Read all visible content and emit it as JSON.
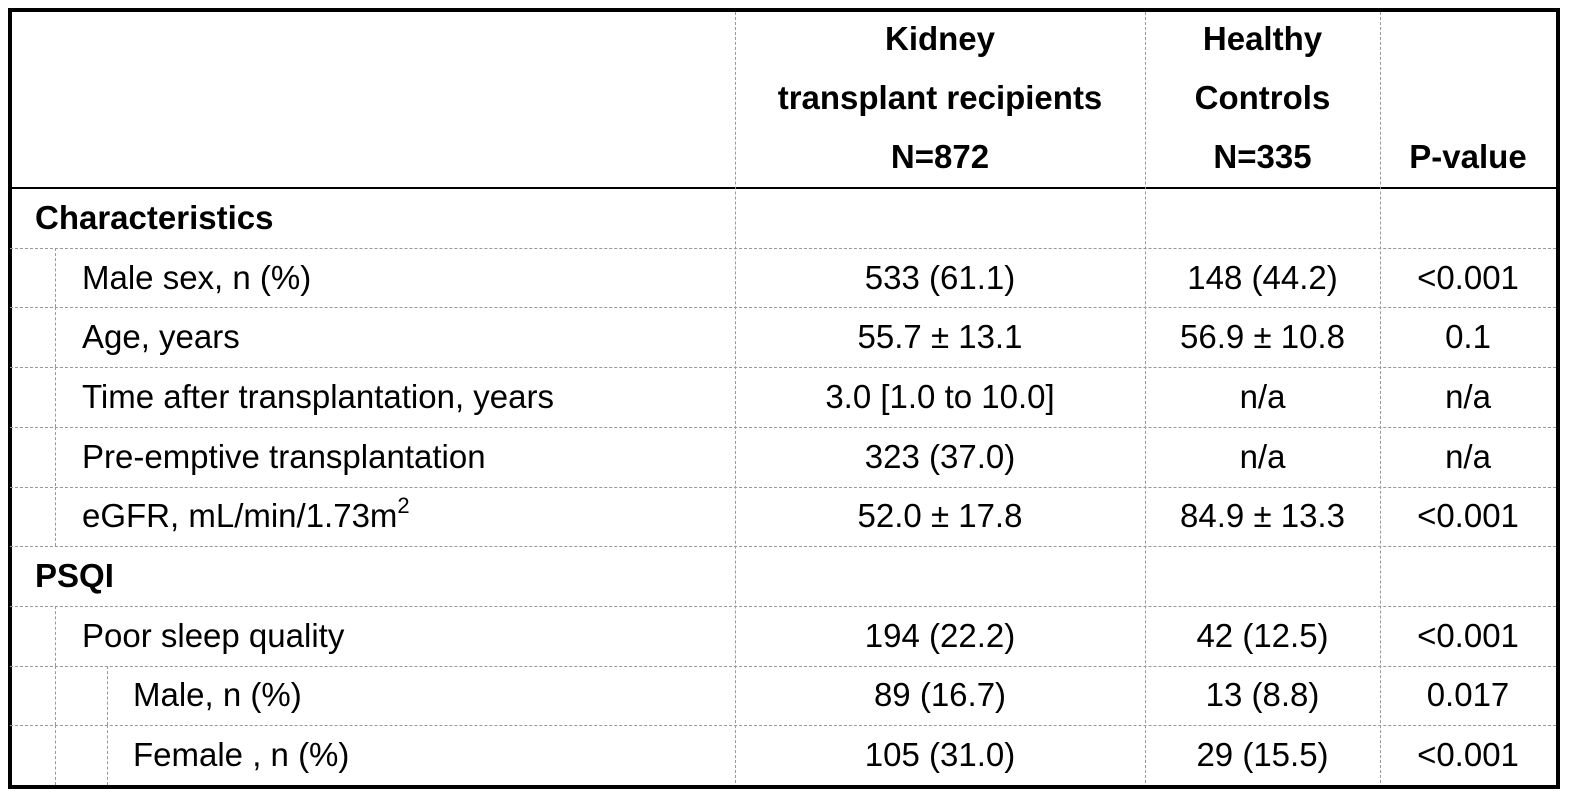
{
  "header": {
    "columns": [
      [
        "Kidney",
        "transplant recipients",
        "N=872"
      ],
      [
        "Healthy",
        "Controls",
        "N=335"
      ],
      [
        "P-value"
      ]
    ]
  },
  "sections": [
    {
      "title": "Characteristics",
      "rows": [
        {
          "label": "Male sex, n (%)",
          "values": [
            "533 (61.1)",
            "148 (44.2)",
            "<0.001"
          ]
        },
        {
          "label": "Age, years",
          "values": [
            "55.7 ± 13.1",
            "56.9 ± 10.8",
            "0.1"
          ]
        },
        {
          "label": "Time after transplantation, years",
          "values": [
            "3.0 [1.0 to 10.0]",
            "n/a",
            "n/a"
          ]
        },
        {
          "label": "Pre-emptive transplantation",
          "values": [
            "323 (37.0)",
            "n/a",
            "n/a"
          ]
        },
        {
          "label": "eGFR, mL/min/1.73m",
          "label_sup": "2",
          "values": [
            "52.0 ± 17.8",
            "84.9 ± 13.3",
            "<0.001"
          ]
        }
      ]
    },
    {
      "title": "PSQI",
      "rows": [
        {
          "label": "Poor sleep quality",
          "values": [
            "194 (22.2)",
            "42 (12.5)",
            "<0.001"
          ],
          "subrows": [
            {
              "label": "Male, n (%)",
              "values": [
                "89 (16.7)",
                "13 (8.8)",
                "0.017"
              ]
            },
            {
              "label": "Female , n (%)",
              "values": [
                "105 (31.0)",
                "29 (15.5)",
                "<0.001"
              ]
            }
          ]
        }
      ]
    }
  ]
}
